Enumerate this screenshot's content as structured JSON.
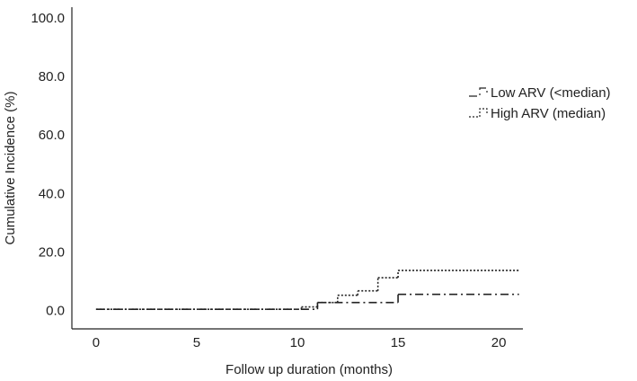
{
  "chart_data": {
    "type": "step",
    "x_label": "Follow up duration (months)",
    "y_label": "Cumulative Incidence (%)",
    "xlim": [
      -1.2,
      21.2
    ],
    "xticks": [
      0,
      5,
      10,
      15,
      20
    ],
    "ylim": [
      -6,
      104
    ],
    "yticks": [
      {
        "value": 0,
        "label": "0.0"
      },
      {
        "value": 20,
        "label": "20.0"
      },
      {
        "value": 40,
        "label": "40.0"
      },
      {
        "value": 60,
        "label": "60.0"
      },
      {
        "value": 80,
        "label": "80.0"
      },
      {
        "value": 100,
        "label": "100.0"
      }
    ],
    "legend": "upper right",
    "series": [
      {
        "name": "Low ARV (<median)",
        "color": "#222222",
        "dash": "9 4 2 4",
        "x": [
          0,
          11,
          15,
          21
        ],
        "values": [
          0.7,
          3,
          5.8,
          5.8
        ]
      },
      {
        "name": "High ARV (median)",
        "color": "#222222",
        "dash": "2 2",
        "x": [
          0,
          10.2,
          11,
          12,
          13,
          14,
          15,
          21
        ],
        "values": [
          0.7,
          1.5,
          3,
          5.5,
          7,
          11.5,
          14,
          14
        ]
      }
    ]
  }
}
